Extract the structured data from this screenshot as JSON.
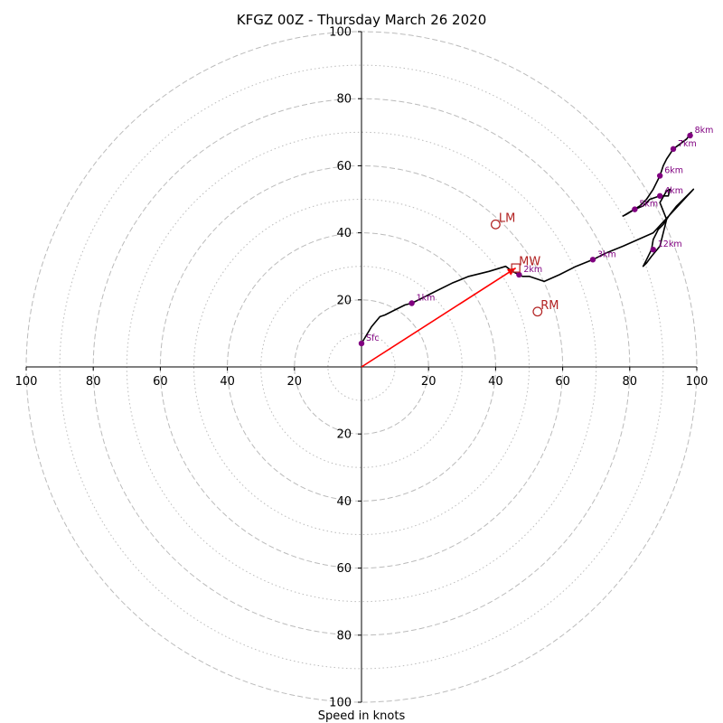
{
  "chart_data": {
    "type": "line",
    "title": "KFGZ 00Z - Thursday March 26 2020",
    "xlabel": "Speed in knots",
    "ylabel": "",
    "xlim": [
      -100,
      100
    ],
    "ylim": [
      -100,
      100
    ],
    "grid": "polar",
    "rings_major": [
      20,
      40,
      60,
      80,
      100
    ],
    "rings_minor": [
      10,
      30,
      50,
      70,
      90
    ],
    "x_tick_labels": [
      "100",
      "80",
      "60",
      "40",
      "20",
      "20",
      "40",
      "60",
      "80",
      "100"
    ],
    "y_tick_labels_up": [
      "20",
      "40",
      "60",
      "80",
      "100"
    ],
    "y_tick_labels_down": [
      "20",
      "40",
      "60",
      "80",
      "100"
    ],
    "colors": {
      "trace": "#000000",
      "height_marker": "#800080",
      "motion": "#b22222",
      "arrow": "#ff0000",
      "grid": "#bbbbbb"
    },
    "series": [
      {
        "values_xy": [
          [
            0,
            7
          ],
          [
            3,
            12
          ],
          [
            5.5,
            15
          ],
          [
            7,
            15.5
          ],
          [
            10,
            17
          ],
          [
            13,
            18.5
          ],
          [
            15,
            19
          ],
          [
            17,
            20
          ],
          [
            21,
            22
          ],
          [
            27,
            25
          ],
          [
            32,
            27
          ],
          [
            38,
            28.5
          ],
          [
            43,
            30
          ],
          [
            45,
            28.5
          ],
          [
            47,
            27.5
          ],
          [
            48,
            27
          ],
          [
            50,
            27
          ],
          [
            53,
            26
          ],
          [
            54.5,
            25.5
          ],
          [
            59,
            27.5
          ],
          [
            64,
            30
          ],
          [
            69,
            32
          ],
          [
            73,
            34
          ],
          [
            78,
            36
          ],
          [
            87,
            40
          ],
          [
            99,
            53
          ],
          [
            97,
            51
          ],
          [
            94,
            48
          ],
          [
            92,
            45.5
          ],
          [
            90,
            42.5
          ],
          [
            88.5,
            41
          ],
          [
            88,
            40
          ],
          [
            87,
            38
          ],
          [
            86.5,
            35
          ],
          [
            85,
            32
          ],
          [
            84,
            30
          ],
          [
            85,
            31
          ],
          [
            86.5,
            33
          ],
          [
            89,
            36
          ],
          [
            91,
            44
          ],
          [
            89,
            49
          ],
          [
            91,
            52.5
          ],
          [
            92,
            53
          ],
          [
            91.5,
            51
          ],
          [
            89,
            51
          ],
          [
            86,
            50
          ],
          [
            84,
            48
          ],
          [
            81.5,
            47
          ],
          [
            79,
            45.5
          ],
          [
            78,
            45
          ],
          [
            83,
            48
          ],
          [
            85,
            50
          ],
          [
            87,
            53
          ],
          [
            89,
            57
          ],
          [
            90,
            60
          ],
          [
            91,
            62
          ],
          [
            93,
            65
          ],
          [
            95,
            66.5
          ],
          [
            97,
            68
          ],
          [
            98,
            69.5
          ],
          [
            98.5,
            70
          ]
        ]
      }
    ],
    "height_markers": [
      {
        "label": "Sfc",
        "x": 0,
        "y": 7
      },
      {
        "label": "1km",
        "x": 15,
        "y": 19
      },
      {
        "label": "2km",
        "x": 47,
        "y": 27.5
      },
      {
        "label": "3km",
        "x": 69,
        "y": 32
      },
      {
        "label": "4km",
        "x": 89,
        "y": 51
      },
      {
        "label": "5km",
        "x": 81.5,
        "y": 47
      },
      {
        "label": "6km",
        "x": 89,
        "y": 57
      },
      {
        "label": "7km",
        "x": 93,
        "y": 65
      },
      {
        "label": "8km",
        "x": 98,
        "y": 69
      },
      {
        "label": "12km",
        "x": 87,
        "y": 35
      }
    ],
    "storm_motions": [
      {
        "label": "LM",
        "x": 40,
        "y": 42.5,
        "marker": "circle"
      },
      {
        "label": "RM",
        "x": 52.5,
        "y": 16.5,
        "marker": "circle"
      },
      {
        "label": "MW",
        "x": 46,
        "y": 29.5,
        "marker": "square"
      }
    ],
    "mean_wind_arrow": {
      "from": [
        0,
        0
      ],
      "to": [
        46,
        29.5
      ]
    }
  }
}
